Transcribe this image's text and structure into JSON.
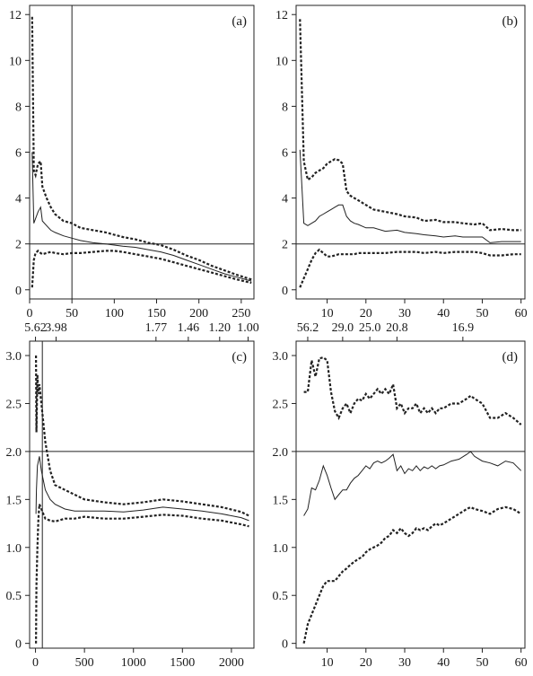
{
  "chart_data": [
    {
      "label": "(a)",
      "type": "line",
      "xlim": [
        0,
        265
      ],
      "ylim": [
        -0.4,
        12.4
      ],
      "xticks": [
        0,
        50,
        100,
        150,
        200,
        250
      ],
      "yticks": [
        0,
        2,
        4,
        6,
        8,
        10,
        12
      ],
      "hline": 2,
      "vline": 50,
      "series": [
        {
          "style": "dotted",
          "x": [
            3,
            5,
            7,
            10,
            13,
            15,
            20,
            25,
            30,
            40,
            50,
            60,
            75,
            90,
            100,
            110,
            125,
            140,
            155,
            170,
            185,
            200,
            215,
            230,
            245,
            262
          ],
          "y": [
            11.9,
            5.2,
            5.0,
            5.5,
            5.6,
            4.5,
            4.0,
            3.6,
            3.3,
            3.0,
            2.9,
            2.7,
            2.6,
            2.5,
            2.4,
            2.3,
            2.2,
            2.05,
            1.95,
            1.75,
            1.5,
            1.3,
            1.05,
            0.85,
            0.65,
            0.45
          ]
        },
        {
          "style": "solid",
          "x": [
            3,
            5,
            7,
            10,
            13,
            15,
            20,
            25,
            30,
            40,
            50,
            60,
            75,
            90,
            100,
            110,
            125,
            140,
            155,
            170,
            185,
            200,
            215,
            230,
            245,
            262
          ],
          "y": [
            6.0,
            2.9,
            3.1,
            3.4,
            3.6,
            3.0,
            2.8,
            2.6,
            2.5,
            2.35,
            2.25,
            2.15,
            2.05,
            2.0,
            1.95,
            1.9,
            1.85,
            1.75,
            1.65,
            1.5,
            1.3,
            1.1,
            0.9,
            0.7,
            0.55,
            0.38
          ]
        },
        {
          "style": "dotted",
          "x": [
            3,
            5,
            7,
            10,
            13,
            15,
            20,
            25,
            30,
            40,
            50,
            60,
            75,
            90,
            100,
            110,
            125,
            140,
            155,
            170,
            185,
            200,
            215,
            230,
            245,
            262
          ],
          "y": [
            0.1,
            1.3,
            1.6,
            1.7,
            1.6,
            1.55,
            1.6,
            1.65,
            1.6,
            1.55,
            1.6,
            1.6,
            1.65,
            1.7,
            1.7,
            1.65,
            1.55,
            1.45,
            1.35,
            1.2,
            1.05,
            0.9,
            0.75,
            0.6,
            0.45,
            0.3
          ]
        }
      ]
    },
    {
      "label": "(b)",
      "type": "line",
      "xlim": [
        2,
        61
      ],
      "ylim": [
        -0.4,
        12.4
      ],
      "xticks": [
        10,
        20,
        30,
        40,
        50,
        60
      ],
      "yticks": [
        0,
        2,
        4,
        6,
        8,
        10,
        12
      ],
      "hline": 2,
      "series": [
        {
          "style": "dotted",
          "x": [
            3,
            4,
            5,
            6,
            7,
            8,
            9,
            10,
            11,
            12,
            13,
            14,
            15,
            16,
            17,
            18,
            20,
            22,
            25,
            28,
            30,
            33,
            35,
            38,
            40,
            43,
            45,
            48,
            50,
            52,
            55,
            58,
            60
          ],
          "y": [
            11.8,
            5.6,
            4.8,
            4.9,
            5.1,
            5.2,
            5.3,
            5.5,
            5.6,
            5.7,
            5.65,
            5.5,
            4.3,
            4.1,
            4.0,
            3.9,
            3.7,
            3.5,
            3.4,
            3.3,
            3.2,
            3.15,
            3.0,
            3.05,
            2.95,
            2.95,
            2.9,
            2.85,
            2.9,
            2.6,
            2.65,
            2.6,
            2.6
          ]
        },
        {
          "style": "solid",
          "x": [
            3,
            4,
            5,
            6,
            7,
            8,
            9,
            10,
            11,
            12,
            13,
            14,
            15,
            16,
            17,
            18,
            20,
            22,
            25,
            28,
            30,
            33,
            35,
            38,
            40,
            43,
            45,
            48,
            50,
            52,
            55,
            58,
            60
          ],
          "y": [
            6.1,
            2.9,
            2.8,
            2.9,
            3.0,
            3.2,
            3.3,
            3.4,
            3.5,
            3.6,
            3.7,
            3.7,
            3.2,
            3.0,
            2.9,
            2.85,
            2.7,
            2.7,
            2.55,
            2.6,
            2.5,
            2.45,
            2.4,
            2.35,
            2.3,
            2.35,
            2.3,
            2.3,
            2.3,
            2.05,
            2.1,
            2.1,
            2.1
          ]
        },
        {
          "style": "dotted",
          "x": [
            3,
            4,
            5,
            6,
            7,
            8,
            9,
            10,
            11,
            12,
            13,
            14,
            15,
            16,
            17,
            18,
            20,
            22,
            25,
            28,
            30,
            33,
            35,
            38,
            40,
            43,
            45,
            48,
            50,
            52,
            55,
            58,
            60
          ],
          "y": [
            0.1,
            0.5,
            0.9,
            1.3,
            1.6,
            1.75,
            1.6,
            1.45,
            1.45,
            1.5,
            1.55,
            1.55,
            1.55,
            1.55,
            1.55,
            1.6,
            1.6,
            1.6,
            1.6,
            1.65,
            1.65,
            1.65,
            1.6,
            1.65,
            1.6,
            1.65,
            1.65,
            1.65,
            1.6,
            1.5,
            1.5,
            1.55,
            1.55
          ]
        }
      ]
    },
    {
      "label": "(c)",
      "type": "line",
      "xlim": [
        -60,
        2230
      ],
      "ylim": [
        -0.05,
        3.15
      ],
      "xticks": [
        0,
        500,
        1000,
        1500,
        2000
      ],
      "yticks": [
        0,
        0.5,
        1.0,
        1.5,
        2.0,
        2.5,
        3.0
      ],
      "ytick_labels": [
        "0",
        "0.5",
        "1.0",
        "1.5",
        "2.0",
        "2.5",
        "3.0"
      ],
      "top_ticks": [
        {
          "label": "5.62",
          "x": 0
        },
        {
          "label": "3.98",
          "x": 210
        },
        {
          "label": "1.77",
          "x": 1230
        },
        {
          "label": "1.46",
          "x": 1560
        },
        {
          "label": "1.20",
          "x": 1880
        },
        {
          "label": "1.00",
          "x": 2170
        }
      ],
      "hline": 2.0,
      "vline": 70,
      "series": [
        {
          "style": "dotted",
          "x": [
            5,
            10,
            20,
            30,
            40,
            60,
            80,
            100,
            150,
            200,
            300,
            400,
            500,
            700,
            900,
            1100,
            1300,
            1500,
            1700,
            1900,
            2100,
            2180
          ],
          "y": [
            3.0,
            2.2,
            2.8,
            2.6,
            2.7,
            2.5,
            2.3,
            2.1,
            1.8,
            1.65,
            1.6,
            1.55,
            1.5,
            1.47,
            1.45,
            1.47,
            1.5,
            1.48,
            1.45,
            1.42,
            1.37,
            1.33
          ]
        },
        {
          "style": "solid",
          "x": [
            5,
            10,
            20,
            30,
            40,
            60,
            80,
            100,
            150,
            200,
            300,
            400,
            500,
            700,
            900,
            1100,
            1300,
            1500,
            1700,
            1900,
            2100,
            2180
          ],
          "y": [
            1.35,
            1.6,
            1.85,
            1.9,
            1.95,
            1.8,
            1.7,
            1.6,
            1.5,
            1.45,
            1.4,
            1.38,
            1.38,
            1.38,
            1.37,
            1.39,
            1.42,
            1.4,
            1.38,
            1.35,
            1.31,
            1.28
          ]
        },
        {
          "style": "dotted",
          "x": [
            5,
            10,
            20,
            30,
            40,
            60,
            80,
            100,
            150,
            200,
            300,
            400,
            500,
            700,
            900,
            1100,
            1300,
            1500,
            1700,
            1900,
            2100,
            2180
          ],
          "y": [
            0.0,
            0.6,
            1.0,
            1.3,
            1.45,
            1.4,
            1.35,
            1.3,
            1.28,
            1.27,
            1.3,
            1.3,
            1.32,
            1.3,
            1.3,
            1.32,
            1.34,
            1.33,
            1.3,
            1.28,
            1.24,
            1.22
          ]
        }
      ]
    },
    {
      "label": "(d)",
      "type": "line",
      "xlim": [
        2,
        61
      ],
      "ylim": [
        -0.05,
        3.15
      ],
      "xticks": [
        10,
        20,
        30,
        40,
        50,
        60
      ],
      "yticks": [
        0,
        0.5,
        1.0,
        1.5,
        2.0,
        2.5,
        3.0
      ],
      "ytick_labels": [
        "0",
        "0.5",
        "1.0",
        "1.5",
        "2.0",
        "2.5",
        "3.0"
      ],
      "top_ticks": [
        {
          "label": "56.2",
          "x": 5
        },
        {
          "label": "29.0",
          "x": 14
        },
        {
          "label": "25.0",
          "x": 21
        },
        {
          "label": "20.8",
          "x": 28
        },
        {
          "label": "16.9",
          "x": 45
        }
      ],
      "hline": 2.0,
      "series": [
        {
          "style": "dotted",
          "x": [
            4,
            5,
            6,
            7,
            8,
            9,
            10,
            11,
            12,
            13,
            14,
            15,
            16,
            17,
            18,
            19,
            20,
            21,
            22,
            23,
            24,
            25,
            26,
            27,
            28,
            29,
            30,
            31,
            32,
            33,
            34,
            35,
            36,
            37,
            38,
            39,
            40,
            42,
            44,
            46,
            47,
            48,
            50,
            52,
            54,
            56,
            58,
            60
          ],
          "y": [
            2.62,
            2.62,
            2.95,
            2.78,
            2.97,
            2.98,
            2.95,
            2.62,
            2.42,
            2.35,
            2.45,
            2.5,
            2.4,
            2.5,
            2.55,
            2.53,
            2.6,
            2.55,
            2.6,
            2.65,
            2.6,
            2.65,
            2.6,
            2.7,
            2.45,
            2.5,
            2.4,
            2.45,
            2.45,
            2.5,
            2.4,
            2.45,
            2.4,
            2.45,
            2.4,
            2.45,
            2.45,
            2.5,
            2.5,
            2.55,
            2.58,
            2.55,
            2.5,
            2.35,
            2.35,
            2.4,
            2.35,
            2.28
          ]
        },
        {
          "style": "solid",
          "x": [
            4,
            5,
            6,
            7,
            8,
            9,
            10,
            11,
            12,
            13,
            14,
            15,
            16,
            17,
            18,
            19,
            20,
            21,
            22,
            23,
            24,
            25,
            26,
            27,
            28,
            29,
            30,
            31,
            32,
            33,
            34,
            35,
            36,
            37,
            38,
            39,
            40,
            42,
            44,
            46,
            47,
            48,
            50,
            52,
            54,
            56,
            58,
            60
          ],
          "y": [
            1.33,
            1.4,
            1.62,
            1.6,
            1.7,
            1.85,
            1.75,
            1.62,
            1.5,
            1.55,
            1.6,
            1.6,
            1.67,
            1.72,
            1.75,
            1.8,
            1.85,
            1.82,
            1.88,
            1.9,
            1.88,
            1.9,
            1.93,
            1.97,
            1.8,
            1.85,
            1.77,
            1.82,
            1.8,
            1.85,
            1.8,
            1.84,
            1.82,
            1.85,
            1.82,
            1.85,
            1.86,
            1.9,
            1.92,
            1.97,
            2.0,
            1.95,
            1.9,
            1.88,
            1.85,
            1.9,
            1.88,
            1.8
          ]
        },
        {
          "style": "dotted",
          "x": [
            4,
            5,
            6,
            7,
            8,
            9,
            10,
            11,
            12,
            13,
            14,
            15,
            16,
            17,
            18,
            19,
            20,
            21,
            22,
            23,
            24,
            25,
            26,
            27,
            28,
            29,
            30,
            31,
            32,
            33,
            34,
            35,
            36,
            37,
            38,
            39,
            40,
            42,
            44,
            46,
            47,
            48,
            50,
            52,
            54,
            56,
            58,
            60
          ],
          "y": [
            0.0,
            0.2,
            0.3,
            0.4,
            0.5,
            0.6,
            0.65,
            0.65,
            0.65,
            0.7,
            0.75,
            0.78,
            0.82,
            0.85,
            0.88,
            0.9,
            0.95,
            0.98,
            1.0,
            1.02,
            1.05,
            1.1,
            1.12,
            1.18,
            1.15,
            1.2,
            1.15,
            1.12,
            1.15,
            1.2,
            1.18,
            1.2,
            1.18,
            1.22,
            1.25,
            1.23,
            1.25,
            1.3,
            1.35,
            1.4,
            1.42,
            1.4,
            1.38,
            1.35,
            1.4,
            1.42,
            1.4,
            1.35
          ]
        }
      ]
    }
  ]
}
